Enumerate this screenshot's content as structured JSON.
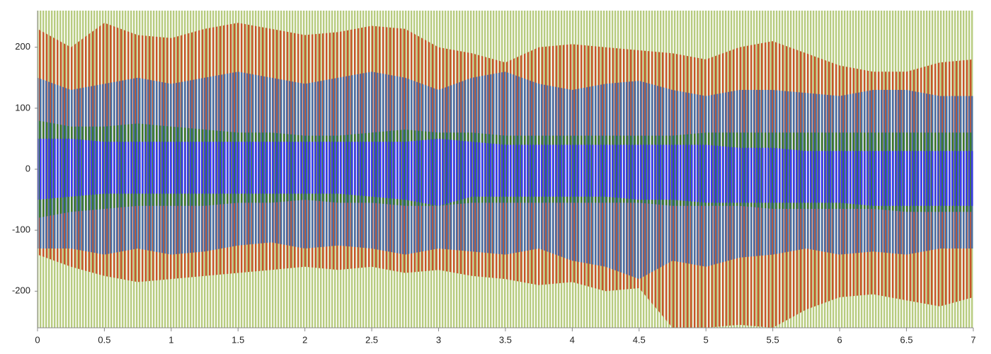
{
  "chart_data": {
    "type": "band",
    "x": [
      0,
      0.25,
      0.5,
      0.75,
      1,
      1.25,
      1.5,
      1.75,
      2,
      2.25,
      2.5,
      2.75,
      3,
      3.25,
      3.5,
      3.75,
      4,
      4.25,
      4.5,
      4.75,
      5,
      5.25,
      5.5,
      5.75,
      6,
      6.25,
      6.5,
      6.75,
      7
    ],
    "xlim": [
      0,
      7
    ],
    "xticks": [
      0,
      0.5,
      1,
      1.5,
      2,
      2.5,
      3,
      3.5,
      4,
      4.5,
      5,
      5.5,
      6,
      6.5,
      7
    ],
    "ylim": [
      -260,
      260
    ],
    "yticks": [
      -200,
      -100,
      0,
      100,
      200
    ],
    "grid": false,
    "series": [
      {
        "color": "#b8cc80",
        "high": [
          260,
          260,
          260,
          260,
          260,
          260,
          260,
          260,
          260,
          260,
          260,
          260,
          260,
          260,
          260,
          260,
          260,
          260,
          260,
          260,
          260,
          260,
          260,
          260,
          260,
          260,
          260,
          260,
          260
        ],
        "low": [
          -260,
          -260,
          -260,
          -260,
          -260,
          -260,
          -260,
          -260,
          -260,
          -260,
          -260,
          -260,
          -260,
          -260,
          -260,
          -260,
          -260,
          -260,
          -260,
          -260,
          -260,
          -260,
          -260,
          -260,
          -260,
          -260,
          -260,
          -260,
          -260
        ]
      },
      {
        "color": "#c8552a",
        "high": [
          230,
          200,
          240,
          220,
          215,
          230,
          240,
          230,
          220,
          225,
          235,
          230,
          200,
          190,
          175,
          200,
          205,
          200,
          195,
          190,
          180,
          200,
          210,
          190,
          170,
          160,
          160,
          175,
          180
        ],
        "low": [
          -140,
          -160,
          -175,
          -185,
          -180,
          -175,
          -170,
          -165,
          -160,
          -165,
          -160,
          -170,
          -165,
          -175,
          -180,
          -190,
          -185,
          -200,
          -195,
          -260,
          -260,
          -255,
          -260,
          -230,
          -210,
          -205,
          -215,
          -225,
          -210
        ]
      },
      {
        "color": "#4a6fa8",
        "high": [
          150,
          130,
          140,
          150,
          140,
          150,
          160,
          150,
          140,
          150,
          160,
          150,
          130,
          150,
          160,
          140,
          130,
          140,
          145,
          130,
          120,
          130,
          130,
          125,
          120,
          130,
          130,
          120,
          120
        ],
        "low": [
          -130,
          -130,
          -140,
          -130,
          -140,
          -135,
          -125,
          -120,
          -130,
          -125,
          -130,
          -140,
          -130,
          -135,
          -140,
          -130,
          -150,
          -160,
          -180,
          -150,
          -160,
          -145,
          -140,
          -130,
          -140,
          -135,
          -140,
          -130,
          -130
        ]
      },
      {
        "color": "#3d7a2c",
        "high": [
          80,
          70,
          70,
          75,
          70,
          65,
          60,
          60,
          55,
          55,
          60,
          65,
          60,
          60,
          55,
          55,
          55,
          55,
          55,
          55,
          60,
          60,
          60,
          60,
          60,
          60,
          60,
          60,
          60
        ],
        "low": [
          -80,
          -70,
          -65,
          -60,
          -60,
          -60,
          -55,
          -55,
          -50,
          -55,
          -55,
          -60,
          -60,
          -55,
          -55,
          -55,
          -55,
          -55,
          -55,
          -60,
          -60,
          -60,
          -65,
          -65,
          -65,
          -65,
          -70,
          -70,
          -70
        ]
      },
      {
        "color": "#3b3bf0",
        "high": [
          50,
          50,
          45,
          45,
          45,
          45,
          45,
          45,
          45,
          45,
          45,
          45,
          50,
          45,
          40,
          40,
          40,
          40,
          40,
          40,
          40,
          35,
          35,
          30,
          30,
          30,
          30,
          30,
          30
        ],
        "low": [
          -50,
          -45,
          -40,
          -40,
          -40,
          -40,
          -40,
          -40,
          -40,
          -40,
          -45,
          -50,
          -60,
          -45,
          -45,
          -45,
          -45,
          -45,
          -50,
          -50,
          -55,
          -55,
          -55,
          -55,
          -55,
          -60,
          -60,
          -60,
          -60
        ]
      }
    ]
  }
}
